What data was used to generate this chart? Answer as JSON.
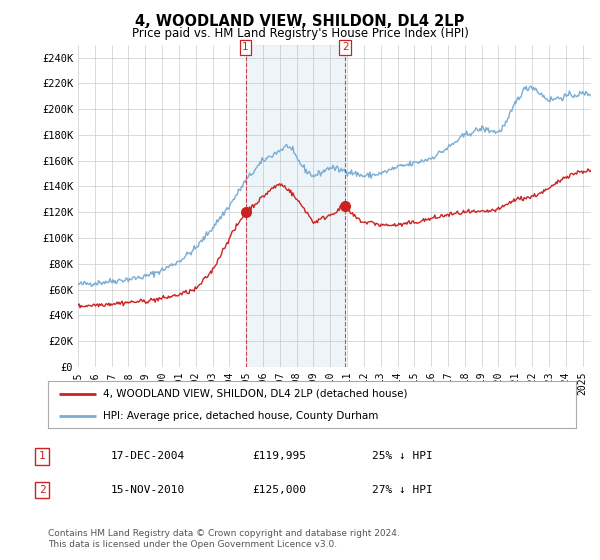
{
  "title": "4, WOODLAND VIEW, SHILDON, DL4 2LP",
  "subtitle": "Price paid vs. HM Land Registry's House Price Index (HPI)",
  "ylabel_ticks": [
    "£0",
    "£20K",
    "£40K",
    "£60K",
    "£80K",
    "£100K",
    "£120K",
    "£140K",
    "£160K",
    "£180K",
    "£200K",
    "£220K",
    "£240K"
  ],
  "ytick_values": [
    0,
    20000,
    40000,
    60000,
    80000,
    100000,
    120000,
    140000,
    160000,
    180000,
    200000,
    220000,
    240000
  ],
  "ylim": [
    0,
    250000
  ],
  "xlim_start": 1995.0,
  "xlim_end": 2025.5,
  "hpi_color": "#7aadd4",
  "price_color": "#cc2222",
  "marker1_x": 2004.96,
  "marker1_y": 119995,
  "marker2_x": 2010.88,
  "marker2_y": 125000,
  "legend_line1": "4, WOODLAND VIEW, SHILDON, DL4 2LP (detached house)",
  "legend_line2": "HPI: Average price, detached house, County Durham",
  "table_row1_num": "1",
  "table_row1_date": "17-DEC-2004",
  "table_row1_price": "£119,995",
  "table_row1_hpi": "25% ↓ HPI",
  "table_row2_num": "2",
  "table_row2_date": "15-NOV-2010",
  "table_row2_price": "£125,000",
  "table_row2_hpi": "27% ↓ HPI",
  "footer": "Contains HM Land Registry data © Crown copyright and database right 2024.\nThis data is licensed under the Open Government Licence v3.0.",
  "bg_color": "#ffffff",
  "grid_color": "#cccccc",
  "x_ticks": [
    1995,
    1996,
    1997,
    1998,
    1999,
    2000,
    2001,
    2002,
    2003,
    2004,
    2005,
    2006,
    2007,
    2008,
    2009,
    2010,
    2011,
    2012,
    2013,
    2014,
    2015,
    2016,
    2017,
    2018,
    2019,
    2020,
    2021,
    2022,
    2023,
    2024,
    2025
  ]
}
